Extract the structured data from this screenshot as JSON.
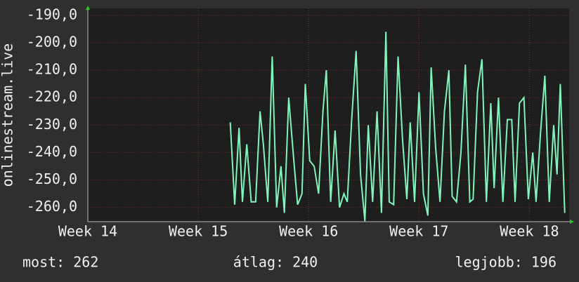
{
  "chart_data": {
    "type": "line",
    "y_label": "onlinestream.live",
    "xlim": [
      14,
      18.36
    ],
    "xticks": [
      {
        "value": 14,
        "label": "Week 14"
      },
      {
        "value": 15,
        "label": "Week 15"
      },
      {
        "value": 16,
        "label": "Week 16"
      },
      {
        "value": 17,
        "label": "Week 17"
      },
      {
        "value": 18,
        "label": "Week 18"
      }
    ],
    "ylim": [
      -265.2,
      -187.5
    ],
    "yticks": [
      {
        "value": -190,
        "label": "-190,0"
      },
      {
        "value": -200,
        "label": "-200,0"
      },
      {
        "value": -210,
        "label": "-210,0"
      },
      {
        "value": -220,
        "label": "-220,0"
      },
      {
        "value": -230,
        "label": "-230,0"
      },
      {
        "value": -240,
        "label": "-240,0"
      },
      {
        "value": -250,
        "label": "-250,0"
      },
      {
        "value": -260,
        "label": "-260,0"
      }
    ],
    "grid": true,
    "x": [
      15.29,
      15.33,
      15.37,
      15.4,
      15.44,
      15.48,
      15.52,
      15.56,
      15.59,
      15.63,
      15.67,
      15.71,
      15.75,
      15.78,
      15.82,
      15.86,
      15.9,
      15.94,
      15.97,
      16.01,
      16.05,
      16.09,
      16.13,
      16.16,
      16.2,
      16.24,
      16.28,
      16.32,
      16.35,
      16.39,
      16.43,
      16.47,
      16.51,
      16.54,
      16.58,
      16.62,
      16.66,
      16.7,
      16.73,
      16.77,
      16.81,
      16.85,
      16.89,
      16.92,
      16.96,
      17.0,
      17.04,
      17.08,
      17.11,
      17.15,
      17.19,
      17.23,
      17.27,
      17.3,
      17.34,
      17.38,
      17.42,
      17.46,
      17.49,
      17.53,
      17.57,
      17.61,
      17.65,
      17.68,
      17.72,
      17.76,
      17.8,
      17.84,
      17.87,
      17.91,
      17.95,
      17.99,
      18.03,
      18.06,
      18.1,
      18.14,
      18.18,
      18.22,
      18.25,
      18.28,
      18.32
    ],
    "series": [
      {
        "color": "#80f5bb",
        "values": [
          -229,
          -259,
          -231,
          -258,
          -237,
          -258,
          -258,
          -225,
          -237,
          -258,
          -205,
          -260,
          -245,
          -262,
          -220,
          -240,
          -259,
          -255,
          -215,
          -243,
          -245,
          -255,
          -225,
          -210,
          -258,
          -232,
          -260,
          -255,
          -258,
          -228,
          -203,
          -248,
          -265,
          -230,
          -258,
          -225,
          -262,
          -196,
          -258,
          -259,
          -205,
          -235,
          -257,
          -229,
          -258,
          -218,
          -255,
          -263,
          -209,
          -238,
          -258,
          -225,
          -210,
          -256,
          -258,
          -240,
          -208,
          -258,
          -257,
          -218,
          -206,
          -258,
          -222,
          -253,
          -220,
          -258,
          -228,
          -228,
          -258,
          -222,
          -220,
          -257,
          -240,
          -258,
          -233,
          -212,
          -258,
          -230,
          -248,
          -215,
          -262
        ]
      }
    ]
  },
  "footer": {
    "current": "most: 262",
    "average": "átlag: 240",
    "best": "legjobb: 196"
  }
}
